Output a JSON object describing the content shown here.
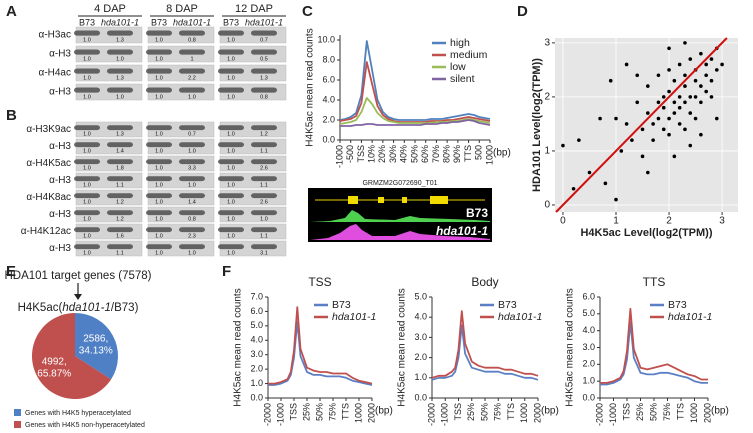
{
  "panel_labels": [
    "A",
    "B",
    "C",
    "D",
    "E",
    "F"
  ],
  "blots": {
    "days": [
      "4 DAP",
      "8 DAP",
      "12 DAP"
    ],
    "genotypes": [
      "B73",
      "hda101-1"
    ],
    "panel_a": [
      {
        "antibody": "α-H3ac",
        "ratios": [
          [
            "1.0",
            "1.3"
          ],
          [
            "1.0",
            "0.8"
          ],
          [
            "1.0",
            "0.7"
          ]
        ]
      },
      {
        "antibody": "α-H3",
        "ratios": [
          [
            "1.0",
            "1.0"
          ],
          [
            "1.0",
            "1"
          ],
          [
            "1.0",
            "0.5"
          ]
        ]
      },
      {
        "antibody": "α-H4ac",
        "ratios": [
          [
            "1.0",
            "1.3"
          ],
          [
            "1.0",
            "2.2"
          ],
          [
            "1.0",
            "1.3"
          ]
        ]
      },
      {
        "antibody": "α-H3",
        "ratios": [
          [
            "1.0",
            "1.0"
          ],
          [
            "1.0",
            "1.0"
          ],
          [
            "1.0",
            "0.8"
          ]
        ]
      }
    ],
    "panel_b": [
      {
        "antibody": "α-H3K9ac",
        "ratios": [
          [
            "1.0",
            "1.3"
          ],
          [
            "1.0",
            "0.7"
          ],
          [
            "1.0",
            "1.2"
          ]
        ]
      },
      {
        "antibody": "α-H3",
        "ratios": [
          [
            "1.0",
            "1.4"
          ],
          [
            "1.0",
            "1.0"
          ],
          [
            "1.0",
            "1.1"
          ]
        ]
      },
      {
        "antibody": "α-H4K5ac",
        "ratios": [
          [
            "1.0",
            "1.8"
          ],
          [
            "1.0",
            "3.3"
          ],
          [
            "1.0",
            "2.6"
          ]
        ]
      },
      {
        "antibody": "α-H3",
        "ratios": [
          [
            "1.0",
            "1.1"
          ],
          [
            "1.0",
            "1.0"
          ],
          [
            "1.0",
            "1.1"
          ]
        ]
      },
      {
        "antibody": "α-H4K8ac",
        "ratios": [
          [
            "1.0",
            "1.2"
          ],
          [
            "1.0",
            "1.4"
          ],
          [
            "1.0",
            "2.6"
          ]
        ]
      },
      {
        "antibody": "α-H3",
        "ratios": [
          [
            "1.0",
            "1.2"
          ],
          [
            "1.0",
            "0.8"
          ],
          [
            "1.0",
            "1.0"
          ]
        ]
      },
      {
        "antibody": "α-H4K12ac",
        "ratios": [
          [
            "1.0",
            "1.6"
          ],
          [
            "1.0",
            "2.3"
          ],
          [
            "1.0",
            "1.1"
          ]
        ]
      },
      {
        "antibody": "α-H3",
        "ratios": [
          [
            "1.0",
            "1.1"
          ],
          [
            "1.0",
            "1.0"
          ],
          [
            "1.0",
            "3.1"
          ]
        ]
      }
    ]
  },
  "browser": {
    "gene": "GRMZM2G072690_T01",
    "tracks": [
      "B73",
      "hda101-1"
    ]
  },
  "chart_data": [
    {
      "type": "line",
      "ylabel": "H4K5ac mean read counts",
      "xlabel": "(bp)",
      "x": [
        0,
        0.5,
        1,
        1.5,
        2,
        2.5,
        3,
        3.5,
        4,
        4.5,
        5,
        5.5,
        6,
        6.5,
        7,
        7.5,
        8,
        8.5,
        9,
        9.5,
        10,
        10.5,
        11,
        11.5,
        12,
        12.5,
        13,
        13.5,
        14
      ],
      "xlim": [
        0,
        14
      ],
      "xticks": [
        {
          "value": 0,
          "label": "-1000"
        },
        {
          "value": 1,
          "label": "-500"
        },
        {
          "value": 2,
          "label": "TSS"
        },
        {
          "value": 3,
          "label": "10%"
        },
        {
          "value": 4,
          "label": "20%"
        },
        {
          "value": 5,
          "label": "30%"
        },
        {
          "value": 6,
          "label": "40%"
        },
        {
          "value": 7,
          "label": "50%"
        },
        {
          "value": 8,
          "label": "60%"
        },
        {
          "value": 9,
          "label": "70%"
        },
        {
          "value": 10,
          "label": "80%"
        },
        {
          "value": 11,
          "label": "90%"
        },
        {
          "value": 12,
          "label": "TTS"
        },
        {
          "value": 13,
          "label": "500"
        },
        {
          "value": 14,
          "label": "1000"
        }
      ],
      "ylim": [
        0,
        10.5
      ],
      "yticks": [
        {
          "value": 0,
          "label": "0.0"
        },
        {
          "value": 2,
          "label": "2.0"
        },
        {
          "value": 4,
          "label": "4.0"
        },
        {
          "value": 6,
          "label": "6.0"
        },
        {
          "value": 8,
          "label": "8.0"
        },
        {
          "value": 10,
          "label": "10.0"
        }
      ],
      "legend": "upper right",
      "series": [
        {
          "name": "high",
          "color": "#4f81bd",
          "values": [
            2.0,
            2.1,
            2.3,
            2.7,
            4.5,
            9.9,
            7.0,
            4.0,
            2.8,
            2.3,
            2.1,
            2.0,
            2.0,
            2.0,
            2.0,
            2.0,
            2.0,
            2.1,
            2.1,
            2.1,
            2.2,
            2.3,
            2.4,
            2.5,
            2.6,
            2.5,
            2.3,
            2.2,
            2.1
          ]
        },
        {
          "name": "medium",
          "color": "#c0504d",
          "values": [
            1.9,
            2.0,
            2.1,
            2.4,
            3.7,
            7.8,
            5.6,
            3.4,
            2.5,
            2.1,
            1.9,
            1.8,
            1.8,
            1.8,
            1.8,
            1.8,
            1.8,
            1.9,
            1.9,
            1.9,
            2.0,
            2.0,
            2.1,
            2.2,
            2.3,
            2.2,
            2.1,
            2.0,
            1.9
          ]
        },
        {
          "name": "low",
          "color": "#9bbb59",
          "values": [
            1.6,
            1.7,
            1.8,
            2.0,
            2.8,
            4.2,
            3.6,
            2.7,
            2.2,
            1.9,
            1.8,
            1.7,
            1.7,
            1.7,
            1.7,
            1.7,
            1.7,
            1.7,
            1.8,
            1.8,
            1.8,
            1.9,
            1.9,
            2.0,
            2.1,
            2.0,
            1.9,
            1.8,
            1.7
          ]
        },
        {
          "name": "silent",
          "color": "#8064a2",
          "values": [
            1.4,
            1.4,
            1.4,
            1.5,
            1.5,
            1.6,
            1.6,
            1.5,
            1.5,
            1.5,
            1.5,
            1.5,
            1.5,
            1.5,
            1.5,
            1.5,
            1.6,
            1.6,
            1.6,
            1.7,
            1.7,
            1.8,
            1.8,
            1.9,
            2.0,
            1.9,
            1.7,
            1.6,
            1.5
          ]
        }
      ]
    },
    {
      "type": "scatter",
      "xlabel": "H4K5ac Level(log2(TPM))",
      "ylabel": "HDA101 Level(log2(TPM))",
      "xlim": [
        -0.15,
        3.3
      ],
      "ylim": [
        -0.13,
        3.09
      ],
      "xticks": [
        0,
        1,
        2,
        3
      ],
      "yticks": [
        0,
        1,
        2,
        3
      ],
      "grid": true,
      "identity_line": true,
      "color": "#000000",
      "line_color": "#d01010",
      "x": [
        0.3,
        0.0,
        0.5,
        0.7,
        0.9,
        1.0,
        1.1,
        1.2,
        1.3,
        1.4,
        1.5,
        1.5,
        1.6,
        1.6,
        1.7,
        1.7,
        1.8,
        1.8,
        1.8,
        1.9,
        1.9,
        1.9,
        2.0,
        2.0,
        2.0,
        2.0,
        2.1,
        2.1,
        2.1,
        2.2,
        2.2,
        2.2,
        2.2,
        2.3,
        2.3,
        2.3,
        2.3,
        2.4,
        2.4,
        2.4,
        2.5,
        2.5,
        2.5,
        2.5,
        2.6,
        2.6,
        2.6,
        2.7,
        2.7,
        2.7,
        2.8,
        2.8,
        2.8,
        2.9,
        2.9,
        3.0,
        2.6,
        2.4,
        2.1,
        1.4,
        1.2,
        2.0,
        2.3,
        0.8,
        1.6,
        0.2,
        2.9,
        1.0
      ],
      "y": [
        1.2,
        1.1,
        0.6,
        1.6,
        2.3,
        0.1,
        1.0,
        1.5,
        1.2,
        1.9,
        1.4,
        0.9,
        1.7,
        2.2,
        1.5,
        1.2,
        1.9,
        1.6,
        2.4,
        1.4,
        2.0,
        1.8,
        1.6,
        2.1,
        2.5,
        1.3,
        1.9,
        1.7,
        2.3,
        2.0,
        1.5,
        2.6,
        1.8,
        2.2,
        1.9,
        1.4,
        2.4,
        2.0,
        2.7,
        1.7,
        2.3,
        2.0,
        1.6,
        2.5,
        2.2,
        2.8,
        1.9,
        2.4,
        2.1,
        2.6,
        2.3,
        2.7,
        2.0,
        2.5,
        2.9,
        2.6,
        1.3,
        1.1,
        0.9,
        2.4,
        2.6,
        2.9,
        3.0,
        0.4,
        0.6,
        0.3,
        1.6,
        1.6
      ]
    },
    {
      "type": "pie",
      "title": "HDA101 target genes (7578)",
      "subtitle": [
        "H4K5ac(",
        "hda101-1",
        "/B73)"
      ],
      "categories": [
        "Genes with H4K5 hyperacetylated",
        "Genes with H4K5 non-hyperacetylated"
      ],
      "values": [
        34.13,
        65.87
      ],
      "colors": [
        "#4f7fc4",
        "#c0504d"
      ],
      "value_labels": [
        [
          "2586,",
          "34.13%"
        ],
        [
          "4992,",
          "65.87%"
        ]
      ]
    },
    {
      "type": "line",
      "title": "TSS",
      "ylabel": "H4K5ac mean read counts",
      "xlabel": "(bp)",
      "x": [
        0,
        0.5,
        1,
        1.5,
        1.75,
        2,
        2.25,
        2.5,
        3,
        3.5,
        4,
        4.5,
        5,
        5.5,
        6,
        6.5,
        7,
        7.5,
        8
      ],
      "xlim": [
        0,
        8
      ],
      "xticks": [
        {
          "value": 0,
          "label": "-2000"
        },
        {
          "value": 1,
          "label": "-1000"
        },
        {
          "value": 2,
          "label": "TSS"
        },
        {
          "value": 3,
          "label": "25%"
        },
        {
          "value": 4,
          "label": "50%"
        },
        {
          "value": 5,
          "label": "75%"
        },
        {
          "value": 6,
          "label": "TTS"
        },
        {
          "value": 7,
          "label": "1000"
        },
        {
          "value": 8,
          "label": "2000"
        }
      ],
      "ylim": [
        0,
        7
      ],
      "yticks": [
        {
          "value": 0,
          "label": "0.0"
        },
        {
          "value": 1,
          "label": "1.0"
        },
        {
          "value": 2,
          "label": "2.0"
        },
        {
          "value": 3,
          "label": "3.0"
        },
        {
          "value": 4,
          "label": "4.0"
        },
        {
          "value": 5,
          "label": "5.0"
        },
        {
          "value": 6,
          "label": "6.0"
        },
        {
          "value": 7,
          "label": "7.0"
        }
      ],
      "legend": "upper right",
      "series": [
        {
          "name": "B73",
          "color": "#5b7fc4",
          "values": [
            0.9,
            0.9,
            1.0,
            1.2,
            1.6,
            2.8,
            5.3,
            2.9,
            1.8,
            1.6,
            1.6,
            1.5,
            1.5,
            1.5,
            1.4,
            1.2,
            1.1,
            1.0,
            0.9
          ]
        },
        {
          "name": "hda101-1",
          "color": "#c0504d",
          "values": [
            1.0,
            1.0,
            1.1,
            1.3,
            1.8,
            3.3,
            6.3,
            3.4,
            2.1,
            1.9,
            1.8,
            1.8,
            1.7,
            1.7,
            1.7,
            1.4,
            1.2,
            1.1,
            1.0
          ]
        }
      ]
    },
    {
      "type": "line",
      "title": "Body",
      "ylabel": "H4K5ac mean read counts",
      "xlabel": "(bp)",
      "x": [
        0,
        0.5,
        1,
        1.5,
        1.75,
        2,
        2.25,
        2.5,
        3,
        3.5,
        4,
        4.5,
        5,
        5.5,
        6,
        6.5,
        7,
        7.5,
        8
      ],
      "xlim": [
        0,
        8
      ],
      "xticks": [
        {
          "value": 0,
          "label": "-2000"
        },
        {
          "value": 1,
          "label": "-1000"
        },
        {
          "value": 2,
          "label": "TSS"
        },
        {
          "value": 3,
          "label": "25%"
        },
        {
          "value": 4,
          "label": "50%"
        },
        {
          "value": 5,
          "label": "75%"
        },
        {
          "value": 6,
          "label": "TTS"
        },
        {
          "value": 7,
          "label": "1000"
        },
        {
          "value": 8,
          "label": "2000"
        }
      ],
      "ylim": [
        0,
        5
      ],
      "yticks": [
        {
          "value": 0,
          "label": "0.0"
        },
        {
          "value": 1,
          "label": "1.0"
        },
        {
          "value": 2,
          "label": "2.0"
        },
        {
          "value": 3,
          "label": "3.0"
        },
        {
          "value": 4,
          "label": "4.0"
        },
        {
          "value": 5,
          "label": "5.0"
        }
      ],
      "legend": "upper right",
      "series": [
        {
          "name": "B73",
          "color": "#5b7fc4",
          "values": [
            0.9,
            1.0,
            1.0,
            1.1,
            1.3,
            2.0,
            3.6,
            2.2,
            1.5,
            1.4,
            1.3,
            1.3,
            1.3,
            1.2,
            1.2,
            1.1,
            1.0,
            1.0,
            0.9
          ]
        },
        {
          "name": "hda101-1",
          "color": "#c0504d",
          "values": [
            1.0,
            1.1,
            1.1,
            1.3,
            1.5,
            2.4,
            4.3,
            2.7,
            1.8,
            1.6,
            1.5,
            1.5,
            1.5,
            1.4,
            1.4,
            1.3,
            1.2,
            1.2,
            1.1
          ]
        }
      ]
    },
    {
      "type": "line",
      "title": "TTS",
      "ylabel": "H4K5ac mean read counts",
      "xlabel": "(bp)",
      "x": [
        0,
        0.5,
        1,
        1.5,
        1.75,
        2,
        2.25,
        2.5,
        3,
        3.5,
        4,
        4.5,
        5,
        5.5,
        6,
        6.5,
        7,
        7.5,
        8
      ],
      "xlim": [
        0,
        8
      ],
      "xticks": [
        {
          "value": 0,
          "label": "-2000"
        },
        {
          "value": 1,
          "label": "-1000"
        },
        {
          "value": 2,
          "label": "TSS"
        },
        {
          "value": 3,
          "label": "25%"
        },
        {
          "value": 4,
          "label": "50%"
        },
        {
          "value": 5,
          "label": "75%"
        },
        {
          "value": 6,
          "label": "TTS"
        },
        {
          "value": 7,
          "label": "1000"
        },
        {
          "value": 8,
          "label": "2000"
        }
      ],
      "ylim": [
        0,
        6
      ],
      "yticks": [
        {
          "value": 0,
          "label": "0.0"
        },
        {
          "value": 1,
          "label": "1.0"
        },
        {
          "value": 2,
          "label": "2.0"
        },
        {
          "value": 3,
          "label": "3.0"
        },
        {
          "value": 4,
          "label": "4.0"
        },
        {
          "value": 5,
          "label": "5.0"
        },
        {
          "value": 6,
          "label": "6.0"
        }
      ],
      "legend": "upper right",
      "series": [
        {
          "name": "B73",
          "color": "#5b7fc4",
          "values": [
            0.8,
            0.8,
            0.9,
            1.1,
            1.4,
            2.3,
            4.5,
            2.4,
            1.5,
            1.4,
            1.4,
            1.5,
            1.5,
            1.4,
            1.3,
            1.2,
            1.0,
            0.9,
            0.9
          ]
        },
        {
          "name": "hda101-1",
          "color": "#c0504d",
          "values": [
            0.9,
            0.9,
            1.0,
            1.2,
            1.6,
            2.8,
            5.3,
            2.9,
            1.8,
            1.7,
            1.8,
            1.9,
            2.0,
            1.8,
            1.6,
            1.4,
            1.3,
            1.1,
            1.1
          ]
        }
      ]
    }
  ]
}
